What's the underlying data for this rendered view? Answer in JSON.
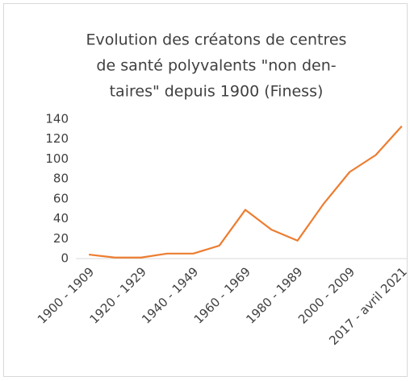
{
  "chart_data": {
    "type": "line",
    "title": [
      "Evolution des créatons de centres",
      "de santé polyvalents \"non den-",
      "taires\" depuis 1900 (Finess)"
    ],
    "categories": [
      "1900 - 1909",
      null,
      "1920 - 1929",
      null,
      "1940 - 1949",
      null,
      "1960 - 1969",
      null,
      "1980 - 1989",
      null,
      "2000 - 2009",
      null,
      "2017 - avril 2021"
    ],
    "values": [
      4,
      1,
      1,
      5,
      5,
      13,
      49,
      29,
      18,
      55,
      87,
      104,
      133
    ],
    "color": "#ed7d31",
    "ylim": [
      0,
      140
    ],
    "yticks": [
      0,
      20,
      40,
      60,
      80,
      100,
      120,
      140
    ],
    "grid": false
  }
}
